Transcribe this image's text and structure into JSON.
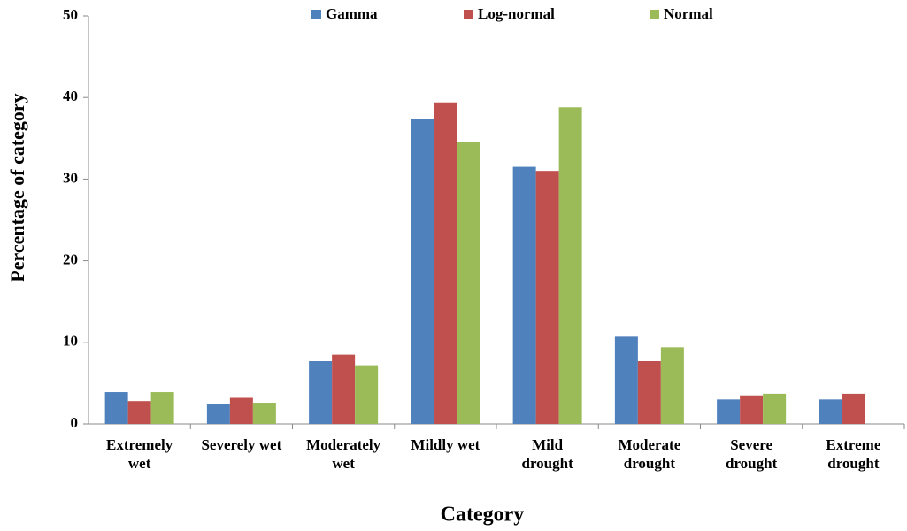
{
  "chart_data": {
    "type": "bar",
    "x_label": "Category",
    "y_label": "Percentage of category",
    "categories": [
      "Extremely wet",
      "Severely wet",
      "Moderately wet",
      "Mildly wet",
      "Mild drought",
      "Moderate drought",
      "Severe drought",
      "Extreme drought"
    ],
    "series": [
      {
        "name": "Gamma",
        "color": "#4f81bd",
        "values": [
          3.9,
          2.4,
          7.7,
          37.4,
          31.5,
          10.7,
          3.0,
          3.0
        ]
      },
      {
        "name": "Log-normal",
        "color": "#c0504d",
        "values": [
          2.8,
          3.2,
          8.5,
          39.4,
          31.0,
          7.7,
          3.5,
          3.7
        ]
      },
      {
        "name": "Normal",
        "color": "#9bbb59",
        "values": [
          3.9,
          2.6,
          7.2,
          34.5,
          38.8,
          9.4,
          3.7,
          null
        ]
      }
    ],
    "ylim": [
      0,
      50
    ],
    "yticks": [
      0,
      10,
      20,
      30,
      40,
      50
    ],
    "grid": false,
    "legend": "top"
  }
}
